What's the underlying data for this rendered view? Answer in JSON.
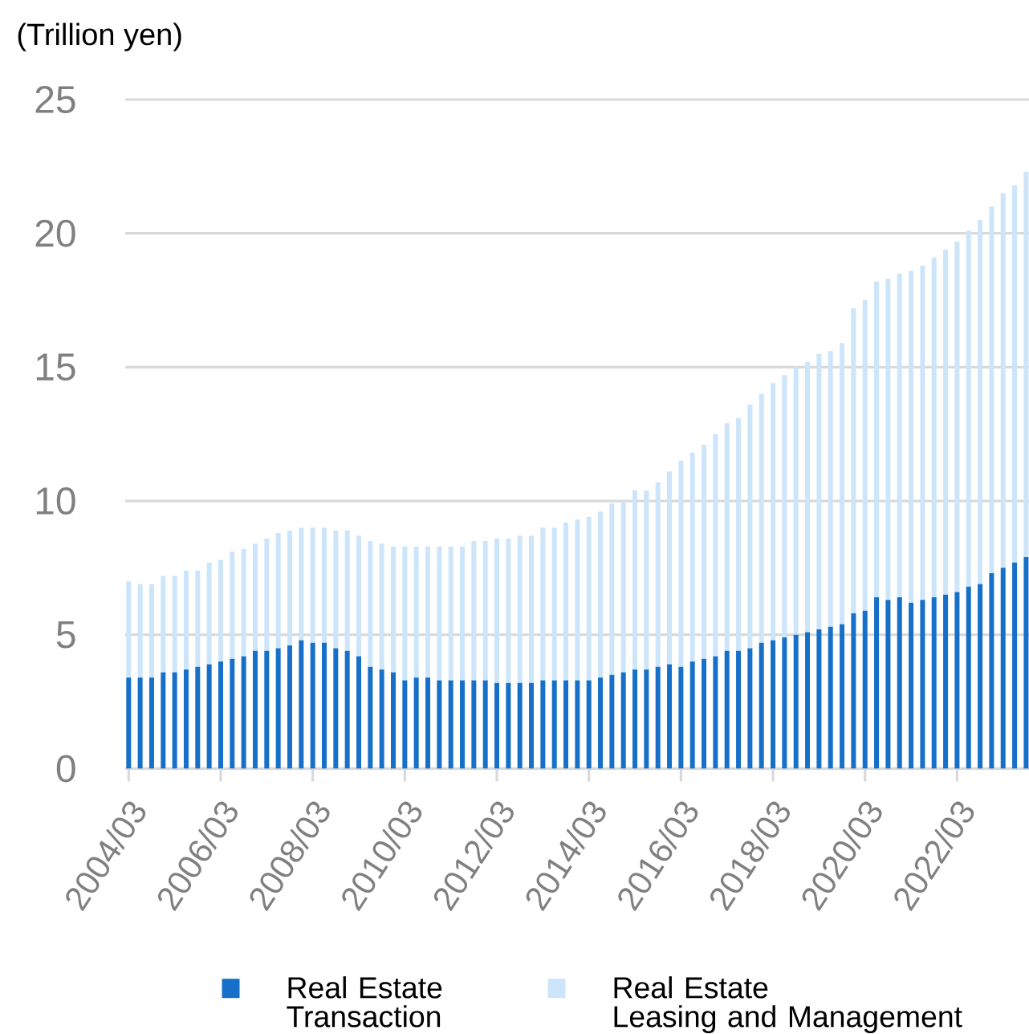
{
  "chart_data": {
    "type": "bar",
    "ylabel": "(Trillion yen)",
    "categories": [
      "2004/03",
      null,
      null,
      null,
      null,
      null,
      null,
      null,
      "2006/03",
      null,
      null,
      null,
      null,
      null,
      null,
      null,
      "2008/03",
      null,
      null,
      null,
      null,
      null,
      null,
      null,
      "2010/03",
      null,
      null,
      null,
      null,
      null,
      null,
      null,
      "2012/03",
      null,
      null,
      null,
      null,
      null,
      null,
      null,
      "2014/03",
      null,
      null,
      null,
      null,
      null,
      null,
      null,
      "2016/03",
      null,
      null,
      null,
      null,
      null,
      null,
      null,
      "2018/03",
      null,
      null,
      null,
      null,
      null,
      null,
      null,
      "2020/03",
      null,
      null,
      null,
      null,
      null,
      null,
      null,
      "2022/03",
      null,
      null,
      null,
      null,
      null,
      null
    ],
    "series": [
      {
        "name": "Real Estate Transaction",
        "color": "#1670c9",
        "values": [
          3.4,
          3.4,
          3.4,
          3.6,
          3.6,
          3.7,
          3.8,
          3.9,
          4.0,
          4.1,
          4.2,
          4.4,
          4.4,
          4.5,
          4.6,
          4.8,
          4.7,
          4.7,
          4.5,
          4.4,
          4.2,
          3.8,
          3.7,
          3.6,
          3.3,
          3.4,
          3.4,
          3.3,
          3.3,
          3.3,
          3.3,
          3.3,
          3.2,
          3.2,
          3.2,
          3.2,
          3.3,
          3.3,
          3.3,
          3.3,
          3.3,
          3.4,
          3.5,
          3.6,
          3.7,
          3.7,
          3.8,
          3.9,
          3.8,
          4.0,
          4.1,
          4.2,
          4.4,
          4.4,
          4.5,
          4.7,
          4.8,
          4.9,
          5.0,
          5.1,
          5.2,
          5.3,
          5.4,
          5.8,
          5.9,
          6.4,
          6.3,
          6.4,
          6.2,
          6.3,
          6.4,
          6.5,
          6.6,
          6.8,
          6.9,
          7.3,
          7.5,
          7.7,
          7.9
        ]
      },
      {
        "name": "Real Estate Leasing and Management",
        "color": "#cde5fa",
        "values": [
          3.6,
          3.5,
          3.5,
          3.6,
          3.6,
          3.7,
          3.6,
          3.8,
          3.8,
          4.0,
          4.0,
          4.0,
          4.2,
          4.3,
          4.3,
          4.2,
          4.3,
          4.3,
          4.4,
          4.5,
          4.5,
          4.7,
          4.7,
          4.7,
          5.0,
          4.9,
          4.9,
          5.0,
          5.0,
          5.0,
          5.2,
          5.2,
          5.4,
          5.4,
          5.5,
          5.5,
          5.7,
          5.7,
          5.9,
          6.0,
          6.1,
          6.2,
          6.4,
          6.4,
          6.7,
          6.7,
          6.9,
          7.2,
          7.7,
          7.8,
          8.0,
          8.3,
          8.5,
          8.7,
          9.1,
          9.3,
          9.6,
          9.8,
          10.0,
          10.1,
          10.3,
          10.3,
          10.5,
          11.4,
          11.6,
          11.8,
          12.0,
          12.1,
          12.4,
          12.5,
          12.7,
          12.9,
          13.1,
          13.3,
          13.6,
          13.7,
          14.0,
          14.1,
          14.4
        ]
      }
    ],
    "stacked": true,
    "ylim": [
      0,
      25
    ],
    "yticks": [
      0,
      5,
      10,
      15,
      20,
      25
    ],
    "grid": "y",
    "legend": "bottom"
  }
}
